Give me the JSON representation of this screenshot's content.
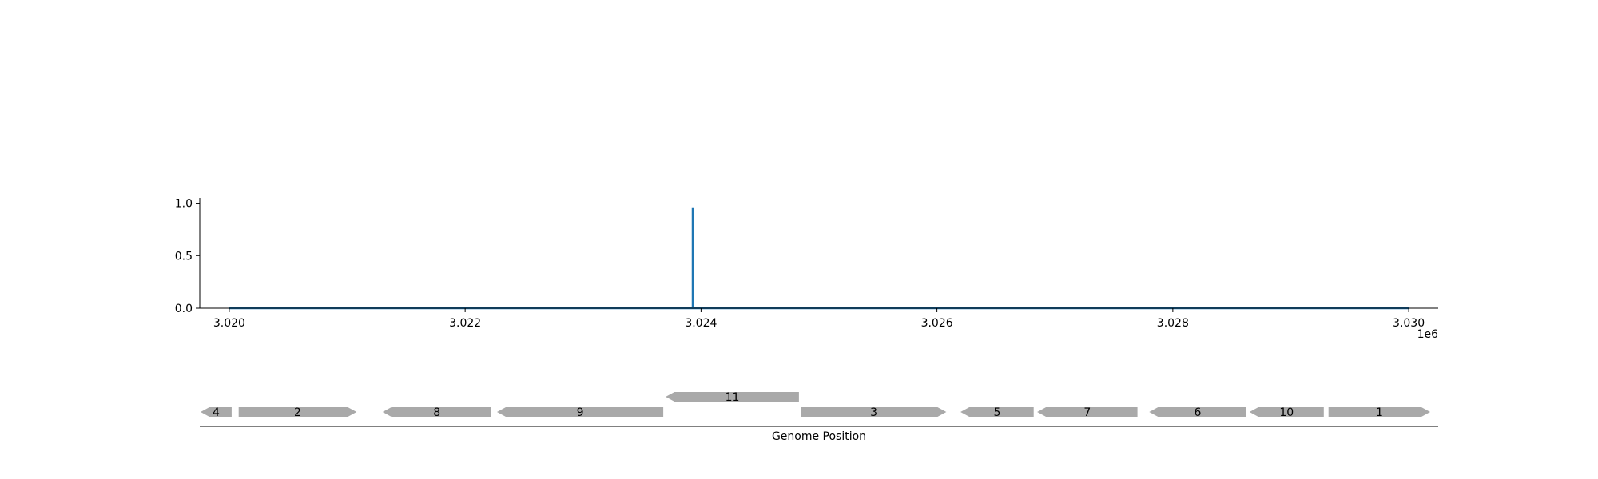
{
  "chart_data": [
    {
      "type": "line",
      "title": "",
      "xlabel": "",
      "ylabel": "",
      "x_offset_label": "1e6",
      "xlim": [
        3.01975,
        3.03025
      ],
      "ylim": [
        0,
        1.05
      ],
      "x_ticks": [
        3.02,
        3.022,
        3.024,
        3.026,
        3.028,
        3.03
      ],
      "x_tick_labels": [
        "3.020",
        "3.022",
        "3.024",
        "3.026",
        "3.028",
        "3.030"
      ],
      "y_ticks": [
        0.0,
        0.5,
        1.0
      ],
      "y_tick_labels": [
        "0.0",
        "0.5",
        "1.0"
      ],
      "grid": false,
      "series": [
        {
          "color": "#1f77b4",
          "x": [
            3.02,
            3.02393,
            3.02393,
            3.02393,
            3.03
          ],
          "y": [
            0.0,
            0.0,
            0.96,
            0.0,
            0.0
          ]
        }
      ]
    },
    {
      "type": "gene-track",
      "xlabel": "Genome Position",
      "genes": [
        {
          "label": "4",
          "start": 3.0197,
          "end": 3.02002,
          "strand": "-",
          "row": 0
        },
        {
          "label": "2",
          "start": 3.02008,
          "end": 3.02108,
          "strand": "+",
          "row": 0
        },
        {
          "label": "8",
          "start": 3.0213,
          "end": 3.02222,
          "strand": "-",
          "row": 0
        },
        {
          "label": "9",
          "start": 3.02227,
          "end": 3.02368,
          "strand": "-",
          "row": 0
        },
        {
          "label": "11",
          "start": 3.0237,
          "end": 3.02483,
          "strand": "-",
          "row": 1
        },
        {
          "label": "3",
          "start": 3.02485,
          "end": 3.02608,
          "strand": "+",
          "row": 0
        },
        {
          "label": "5",
          "start": 3.0262,
          "end": 3.02682,
          "strand": "-",
          "row": 0
        },
        {
          "label": "7",
          "start": 3.02685,
          "end": 3.0277,
          "strand": "-",
          "row": 0
        },
        {
          "label": "6",
          "start": 3.0278,
          "end": 3.02862,
          "strand": "-",
          "row": 0
        },
        {
          "label": "10",
          "start": 3.02865,
          "end": 3.02928,
          "strand": "-",
          "row": 0
        },
        {
          "label": "1",
          "start": 3.02932,
          "end": 3.0305,
          "strand": "+",
          "row": 0
        }
      ],
      "gene_color": "#a9a9a9"
    }
  ]
}
